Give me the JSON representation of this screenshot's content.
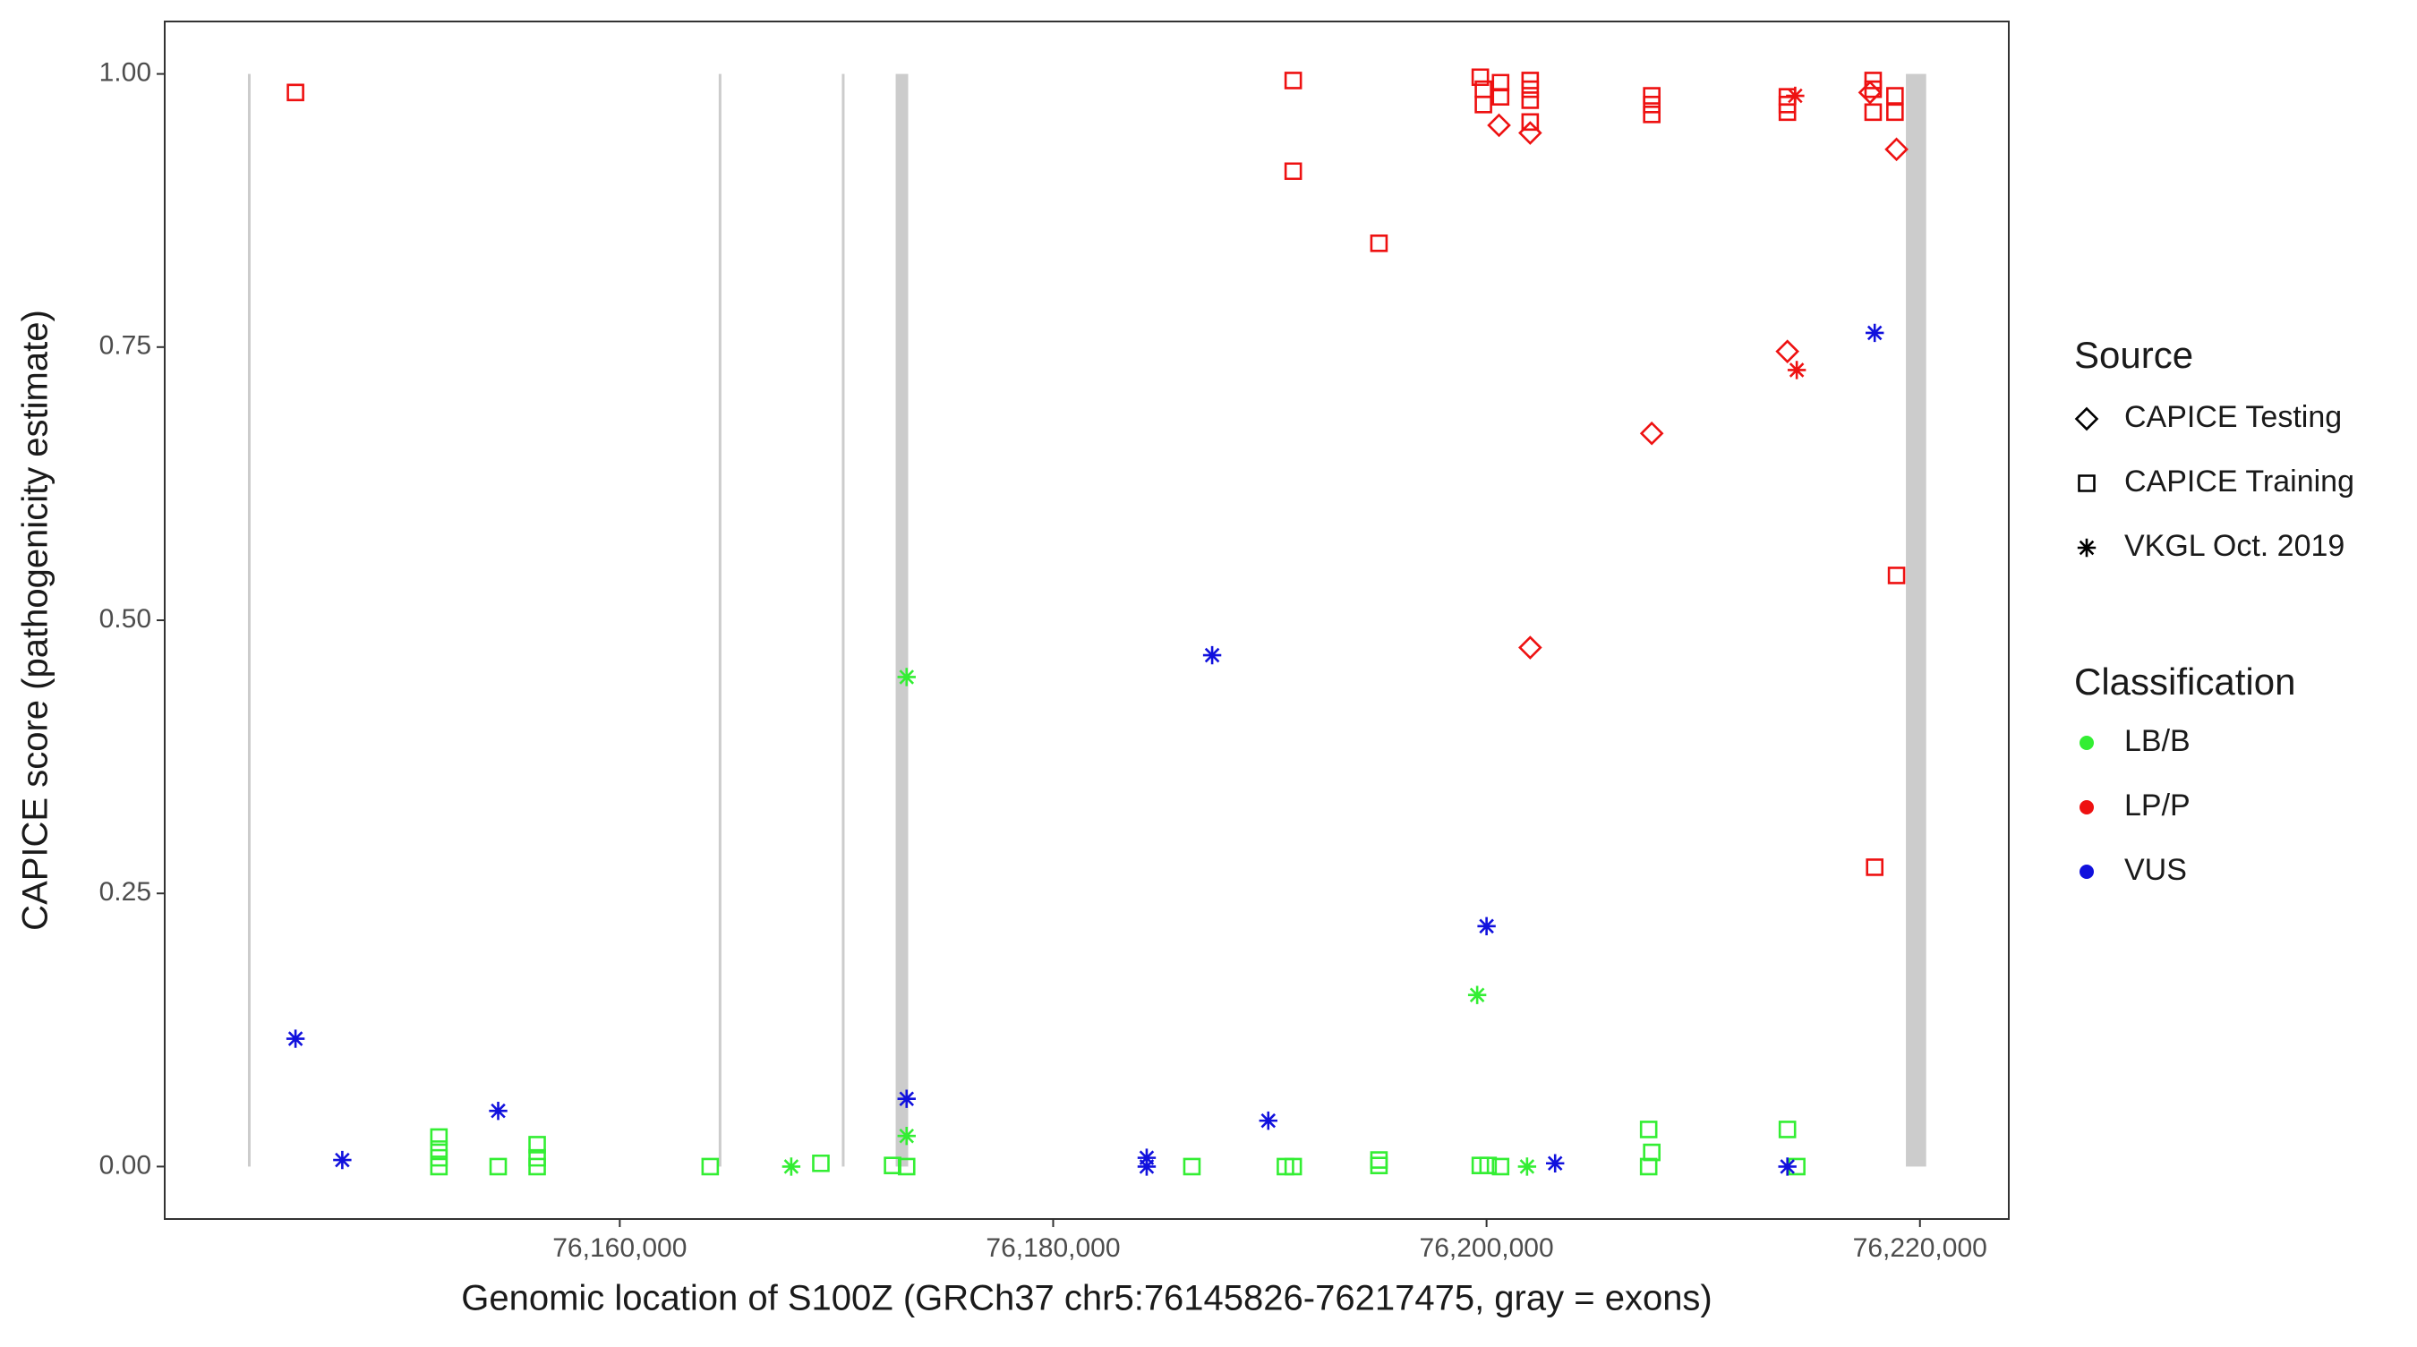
{
  "chart_data": {
    "type": "scatter",
    "x_label": "Genomic location of S100Z (GRCh37 chr5:76145826-76217475, gray = exons)",
    "y_label": "CAPICE score (pathogenicity estimate)",
    "xlim": [
      76139000,
      76224100
    ],
    "ylim": [
      -0.048,
      1.048
    ],
    "xticks": [
      {
        "value": 76160000,
        "label": "76,160,000"
      },
      {
        "value": 76180000,
        "label": "76,180,000"
      },
      {
        "value": 76200000,
        "label": "76,200,000"
      },
      {
        "value": 76220000,
        "label": "76,220,000"
      }
    ],
    "yticks": [
      {
        "value": 0,
        "label": "0.00"
      },
      {
        "value": 0.25,
        "label": "0.25"
      },
      {
        "value": 0.5,
        "label": "0.50"
      },
      {
        "value": 0.75,
        "label": "0.75"
      },
      {
        "value": 1,
        "label": "1.00"
      }
    ],
    "grid": false,
    "exon_color": "#cccccc",
    "exons": [
      [
        76142840,
        76142916
      ],
      [
        76164566,
        76164642
      ],
      [
        76170249,
        76170325
      ],
      [
        76172733,
        76173309
      ],
      [
        76219351,
        76220286
      ]
    ],
    "shape_legend": {
      "title": "Source",
      "items": [
        {
          "name": "CAPICE Testing",
          "shape": "diamond"
        },
        {
          "name": "CAPICE Training",
          "shape": "square"
        },
        {
          "name": "VKGL Oct. 2019",
          "shape": "asterisk"
        }
      ]
    },
    "color_legend": {
      "title": "Classification",
      "items": [
        {
          "name": "LB/B",
          "color": "#33ee33"
        },
        {
          "name": "LP/P",
          "color": "#ee1111"
        },
        {
          "name": "VUS",
          "color": "#1111dd"
        }
      ]
    },
    "series": [
      {
        "shape": "square",
        "color": "#ee1111",
        "x": [
          76145036,
          76191078,
          76191078,
          76195035,
          76199711,
          76199855,
          76199855,
          76200647,
          76200647,
          76202013,
          76202013,
          76202013,
          76202013,
          76207624,
          76207624,
          76207624,
          76213883,
          76213883,
          76213883,
          76217840,
          76217840,
          76217840,
          76218847,
          76218847,
          76218919,
          76217912
        ],
        "y": [
          0.983,
          0.994,
          0.911,
          0.845,
          0.997,
          0.986,
          0.972,
          0.992,
          0.979,
          0.994,
          0.986,
          0.976,
          0.956,
          0.98,
          0.972,
          0.963,
          0.979,
          0.972,
          0.965,
          0.994,
          0.986,
          0.965,
          0.98,
          0.965,
          0.541,
          0.274
        ]
      },
      {
        "shape": "diamond",
        "color": "#ee1111",
        "x": [
          76200575,
          76202013,
          76218919,
          76213883,
          76207624,
          76202013,
          76217696
        ],
        "y": [
          0.953,
          0.946,
          0.931,
          0.746,
          0.671,
          0.475,
          0.983
        ]
      },
      {
        "shape": "asterisk",
        "color": "#ee1111",
        "x": [
          76214243,
          76214315
        ],
        "y": [
          0.98,
          0.729
        ]
      },
      {
        "shape": "square",
        "color": "#33ee33",
        "x": [
          76151655,
          76151655,
          76151655,
          76151655,
          76154389,
          76156187,
          76156187,
          76156187,
          76164173,
          76169280,
          76172590,
          76173237,
          76186402,
          76190718,
          76191078,
          76195035,
          76195035,
          76199711,
          76200071,
          76200647,
          76207480,
          76207480,
          76207624,
          76213883,
          76214315
        ],
        "y": [
          0.027,
          0.016,
          0.008,
          0,
          0,
          0.02,
          0.008,
          0,
          0,
          0.003,
          0.001,
          0,
          0,
          0,
          0,
          0.001,
          0.006,
          0.001,
          0.001,
          0,
          0,
          0.034,
          0.013,
          0.034,
          0
        ]
      },
      {
        "shape": "asterisk",
        "color": "#33ee33",
        "x": [
          76173237,
          76173237,
          76167913,
          76199567,
          76201869
        ],
        "y": [
          0.448,
          0.028,
          0,
          0.157,
          0
        ]
      },
      {
        "shape": "asterisk",
        "color": "#1111dd",
        "x": [
          76145036,
          76147195,
          76154389,
          76173237,
          76184316,
          76184316,
          76187337,
          76189927,
          76200000,
          76203164,
          76213883,
          76217912
        ],
        "y": [
          0.117,
          0.006,
          0.051,
          0.062,
          0.008,
          0,
          0.468,
          0.042,
          0.22,
          0.003,
          0,
          0.763
        ]
      }
    ]
  }
}
